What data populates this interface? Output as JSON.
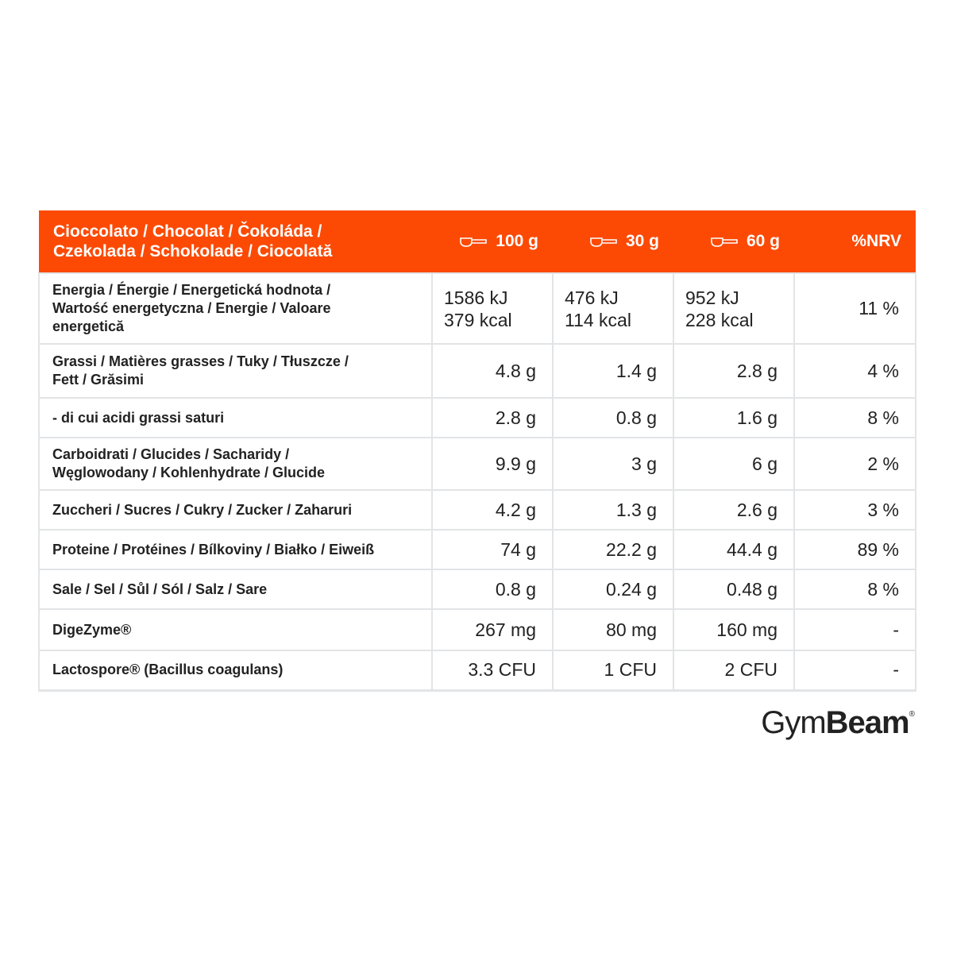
{
  "table": {
    "header": {
      "title": [
        "Cioccolato / Chocolat / Čokoláda /",
        "Czekolada / Schokolade / Ciocolată"
      ],
      "columns": [
        "100 g",
        "30 g",
        "60 g",
        "%NRV"
      ]
    },
    "rows": [
      {
        "label": [
          "Energia / Énergie / Energetická hodnota /",
          "Wartość energetyczna / Energie / Valoare",
          "energetică"
        ],
        "values": [
          [
            "1586 kJ",
            "379 kcal"
          ],
          [
            "476 kJ",
            "114 kcal"
          ],
          [
            "952 kJ",
            "228 kcal"
          ],
          "11 %"
        ]
      },
      {
        "label": [
          "Grassi / Matières grasses / Tuky / Tłuszcze /",
          "Fett / Grăsimi"
        ],
        "values": [
          "4.8 g",
          "1.4 g",
          "2.8 g",
          "4 %"
        ]
      },
      {
        "label": [
          "- di cui acidi grassi saturi"
        ],
        "values": [
          "2.8 g",
          "0.8 g",
          "1.6 g",
          "8 %"
        ]
      },
      {
        "label": [
          "Carboidrati / Glucides / Sacharidy /",
          "Węglowodany / Kohlenhydrate / Glucide"
        ],
        "values": [
          "9.9 g",
          "3 g",
          "6 g",
          "2 %"
        ]
      },
      {
        "label": [
          "Zuccheri / Sucres / Cukry / Zucker / Zaharuri"
        ],
        "values": [
          "4.2 g",
          "1.3 g",
          "2.6 g",
          "3 %"
        ]
      },
      {
        "label": [
          "Proteine / Protéines / Bílkoviny / Białko / Eiweiß"
        ],
        "values": [
          "74 g",
          "22.2 g",
          "44.4 g",
          "89 %"
        ]
      },
      {
        "label": [
          "Sale / Sel / Sůl / Sól / Salz / Sare"
        ],
        "values": [
          "0.8 g",
          "0.24 g",
          "0.48 g",
          "8 %"
        ]
      },
      {
        "label": [
          "DigeZyme®"
        ],
        "values": [
          "267 mg",
          "80 mg",
          "160 mg",
          "-"
        ]
      },
      {
        "label": [
          "Lactospore® (Bacillus coagulans)"
        ],
        "values": [
          "3.3 CFU",
          "1 CFU",
          "2 CFU",
          "-"
        ]
      }
    ]
  },
  "logo": {
    "light": "Gym",
    "bold": "Beam",
    "mark": "®"
  }
}
